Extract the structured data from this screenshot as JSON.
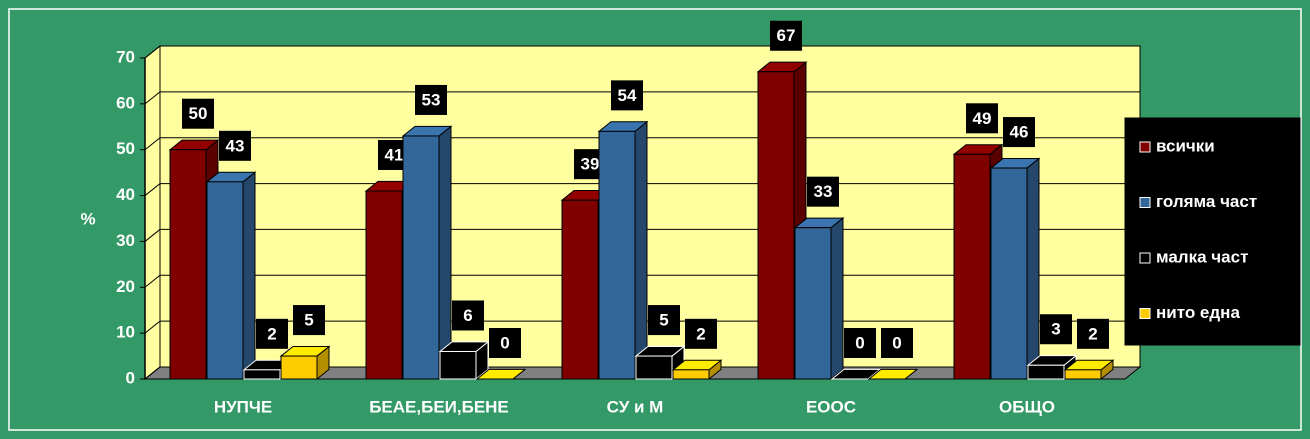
{
  "chart_data": {
    "type": "bar3d",
    "y_label": "%",
    "categories": [
      "НУПЧЕ",
      "БЕАЕ,БЕИ,БЕНЕ",
      "СУ и М",
      "ЕООС",
      "ОБЩО"
    ],
    "series": [
      {
        "name": "всички",
        "color": "#800000",
        "values": [
          50,
          41,
          39,
          67,
          49
        ]
      },
      {
        "name": "голяма част",
        "color": "#336699",
        "values": [
          43,
          53,
          54,
          33,
          46
        ]
      },
      {
        "name": "малка част",
        "color": "#000000",
        "values": [
          2,
          6,
          5,
          0,
          3
        ]
      },
      {
        "name": "нито една",
        "color": "#ffcc00",
        "values": [
          5,
          0,
          2,
          0,
          2
        ]
      }
    ],
    "ylim": [
      0,
      70
    ],
    "yticks": [
      0,
      10,
      20,
      30,
      40,
      50,
      60,
      70
    ],
    "grid": true,
    "legend": "right"
  }
}
